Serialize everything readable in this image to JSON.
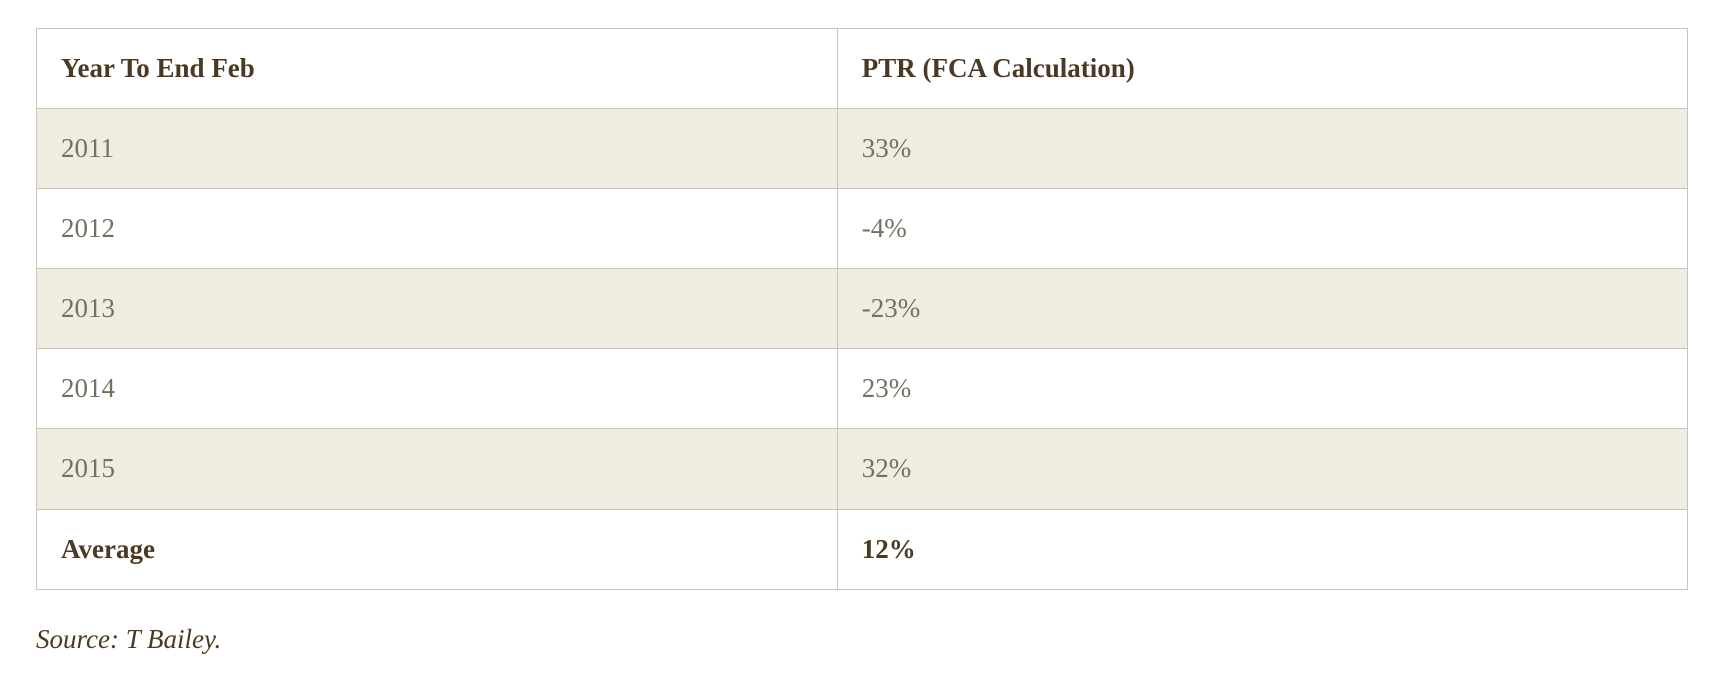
{
  "table": {
    "type": "table",
    "columns": [
      {
        "label": "Year To End Feb",
        "width_pct": 48.5,
        "align": "left"
      },
      {
        "label": "PTR (FCA Calculation)",
        "width_pct": 51.5,
        "align": "left"
      }
    ],
    "rows": [
      {
        "cells": [
          "2011",
          "33%"
        ],
        "stripe": true
      },
      {
        "cells": [
          "2012",
          "-4%"
        ],
        "stripe": false
      },
      {
        "cells": [
          "2013",
          "-23%"
        ],
        "stripe": true
      },
      {
        "cells": [
          "2014",
          "23%"
        ],
        "stripe": false
      },
      {
        "cells": [
          "2015",
          "32%"
        ],
        "stripe": true
      }
    ],
    "footer": {
      "cells": [
        "Average",
        "12%"
      ]
    },
    "colors": {
      "border": "#c8c4b8",
      "stripe_bg": "#efece1",
      "plain_bg": "#ffffff",
      "header_text": "#4a3a24",
      "body_text": "#75705f",
      "footer_text": "#4a3a24"
    },
    "font": {
      "family": "Georgia serif",
      "header_weight": 700,
      "body_weight": 400,
      "footer_weight": 700,
      "size_pt": 20
    }
  },
  "source_line": "Source: T Bailey."
}
